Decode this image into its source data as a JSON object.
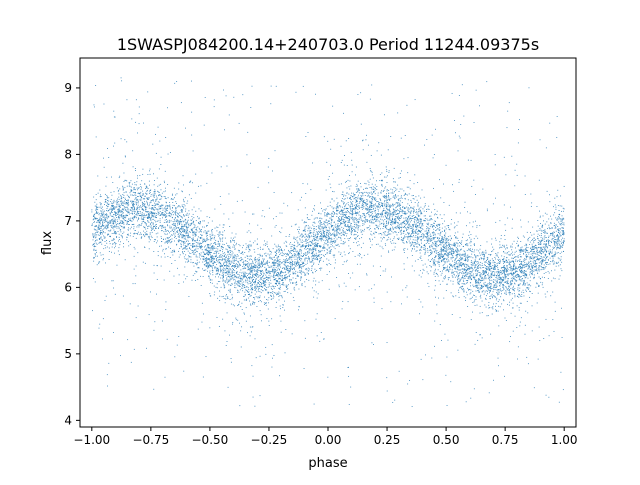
{
  "chart_data": {
    "type": "scatter",
    "title": "1SWASPJ084200.14+240703.0 Period 11244.09375s",
    "xlabel": "phase",
    "ylabel": "flux",
    "xlim": [
      -1.05,
      1.05
    ],
    "ylim": [
      3.9,
      9.45
    ],
    "xticks": [
      -1.0,
      -0.75,
      -0.5,
      -0.25,
      0.0,
      0.25,
      0.5,
      0.75,
      1.0
    ],
    "xtick_labels": [
      "−1.00",
      "−0.75",
      "−0.50",
      "−0.25",
      "0.00",
      "0.25",
      "0.50",
      "0.75",
      "1.00"
    ],
    "yticks": [
      4,
      5,
      6,
      7,
      8,
      9
    ],
    "ytick_labels": [
      "4",
      "5",
      "6",
      "7",
      "8",
      "9"
    ],
    "grid": false,
    "marker_color": "#1f77b4",
    "model": {
      "description": "phase-folded light curve, approx. sinusoid with period 1.0 in phase",
      "mean_flux": 6.67,
      "amplitude": 0.5,
      "peak_phase": [
        -0.8,
        0.2
      ],
      "trough_phase": [
        -0.3,
        0.7
      ],
      "main_scatter": 0.22,
      "outlier_range": [
        4.2,
        9.2
      ]
    },
    "series": [
      {
        "x": [
          -1.0,
          -0.9,
          -0.8,
          -0.7,
          -0.6,
          -0.5,
          -0.4,
          -0.3,
          -0.2,
          -0.1,
          0.0,
          0.1,
          0.2,
          0.3,
          0.4,
          0.5,
          0.6,
          0.7,
          0.8,
          0.9,
          1.0
        ],
        "y": [
          6.82,
          7.05,
          7.17,
          7.05,
          6.8,
          6.52,
          6.29,
          6.17,
          6.29,
          6.52,
          6.82,
          7.05,
          7.17,
          7.05,
          6.8,
          6.52,
          6.29,
          6.17,
          6.29,
          6.52,
          6.82
        ]
      }
    ],
    "n_points": 9000
  }
}
